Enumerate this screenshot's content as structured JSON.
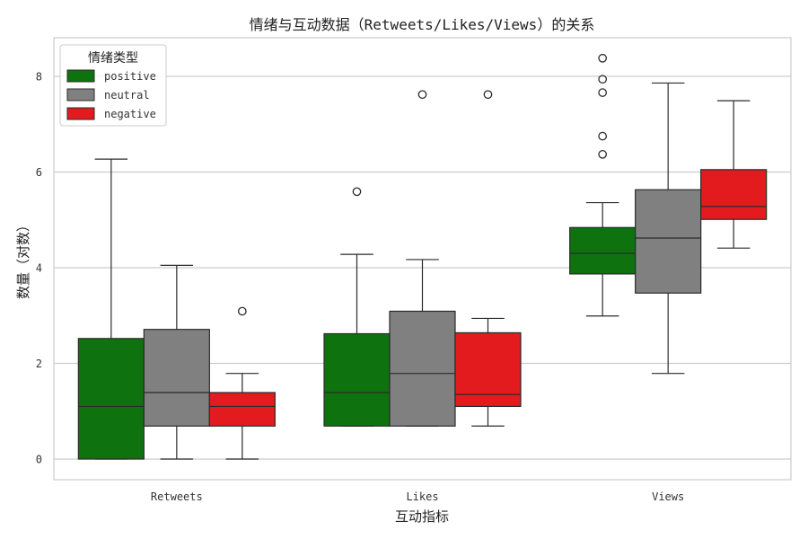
{
  "chart_data": {
    "type": "box",
    "title": "情绪与互动数据（Retweets/Likes/Views）的关系",
    "xlabel": "互动指标",
    "ylabel": "数量（对数）",
    "ylim": [
      -0.42,
      8.85
    ],
    "yticks": [
      0,
      2,
      4,
      6,
      8
    ],
    "grid": "horizontal",
    "categories": [
      "Retweets",
      "Likes",
      "Views"
    ],
    "legend": {
      "title": "情绪类型",
      "position": "top-left",
      "entries": [
        "positive",
        "neutral",
        "negative"
      ]
    },
    "series": [
      {
        "name": "positive",
        "color": "#0e730e",
        "boxes": [
          {
            "whisker_low": 0,
            "q1": 0,
            "median": 1.1,
            "q3": 2.52,
            "whisker_high": 6.27,
            "outliers": []
          },
          {
            "whisker_low": 0.69,
            "q1": 0.69,
            "median": 1.39,
            "q3": 2.62,
            "whisker_high": 4.28,
            "outliers": [
              5.59
            ]
          },
          {
            "whisker_low": 2.99,
            "q1": 3.87,
            "median": 4.3,
            "q3": 4.84,
            "whisker_high": 5.36,
            "outliers": [
              6.37,
              6.75,
              7.66,
              7.94,
              8.38
            ]
          }
        ]
      },
      {
        "name": "neutral",
        "color": "#808080",
        "boxes": [
          {
            "whisker_low": 0,
            "q1": 0.69,
            "median": 1.39,
            "q3": 2.71,
            "whisker_high": 4.05,
            "outliers": []
          },
          {
            "whisker_low": 0.69,
            "q1": 0.69,
            "median": 1.79,
            "q3": 3.09,
            "whisker_high": 4.17,
            "outliers": [
              7.62
            ]
          },
          {
            "whisker_low": 1.79,
            "q1": 3.47,
            "median": 4.62,
            "q3": 5.63,
            "whisker_high": 7.86,
            "outliers": []
          }
        ]
      },
      {
        "name": "negative",
        "color": "#e31b1f",
        "boxes": [
          {
            "whisker_low": 0,
            "q1": 0.69,
            "median": 1.1,
            "q3": 1.39,
            "whisker_high": 1.79,
            "outliers": [
              3.09
            ]
          },
          {
            "whisker_low": 0.69,
            "q1": 1.1,
            "median": 1.35,
            "q3": 2.64,
            "whisker_high": 2.94,
            "outliers": [
              7.62
            ]
          },
          {
            "whisker_low": 4.41,
            "q1": 5.01,
            "median": 5.28,
            "q3": 6.05,
            "whisker_high": 7.49,
            "outliers": []
          }
        ]
      }
    ]
  }
}
